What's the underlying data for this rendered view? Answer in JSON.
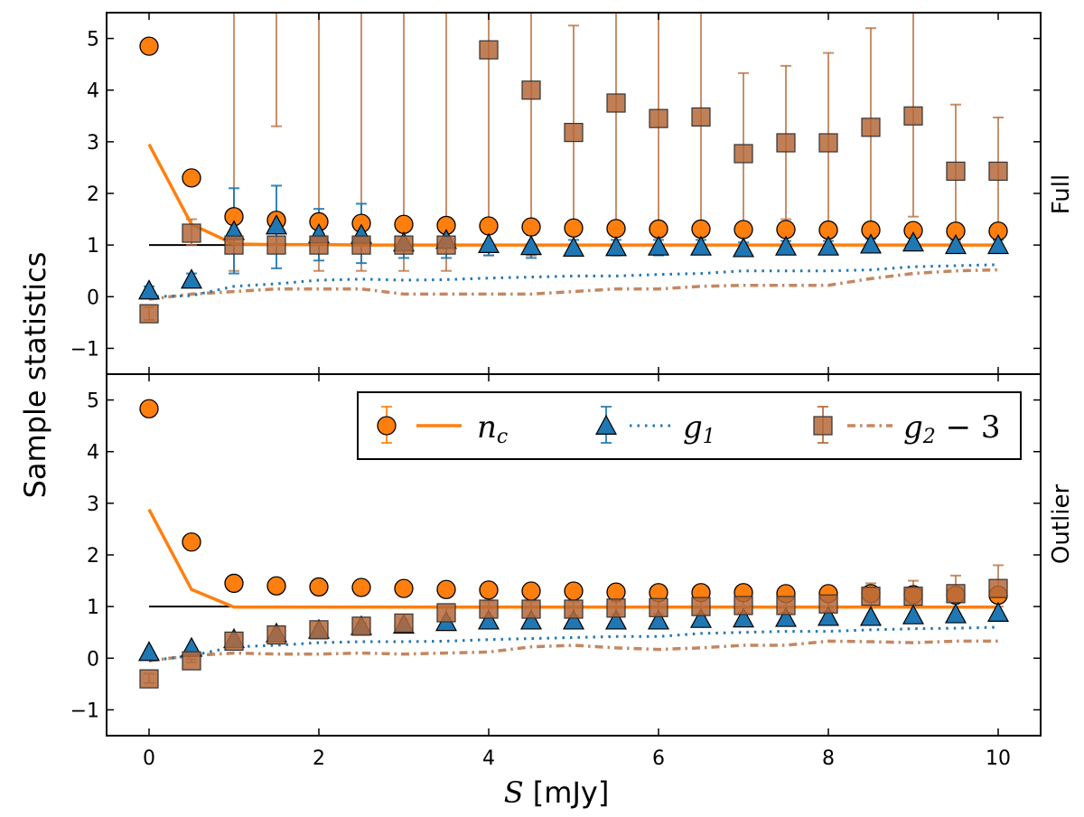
{
  "chart_data": {
    "type": "scatter",
    "ylabel": "Sample statistics",
    "xlabel_symbol": "S",
    "xlabel_unit": " [mJy]",
    "xlim": [
      -0.5,
      10.5
    ],
    "ylim": [
      -1.5,
      5.5
    ],
    "xticks": [
      0,
      2,
      4,
      6,
      8,
      10
    ],
    "yticks": [
      -1,
      0,
      1,
      2,
      3,
      4,
      5
    ],
    "reference_line": {
      "x_from": 0,
      "x_to": 10,
      "y": 1
    },
    "colors": {
      "nc": "#ff7f0e",
      "g1": "#1f77b4",
      "g2": "#b5693a",
      "ref": "#000000"
    },
    "legend": {
      "placement": "upper-right of Outlier panel",
      "entries": [
        {
          "key": "nc",
          "label": "n",
          "sub": "c",
          "suffix": ""
        },
        {
          "key": "g1",
          "label": "g",
          "sub": "1",
          "suffix": ""
        },
        {
          "key": "g2",
          "label": "g",
          "sub": "2",
          "suffix": " − 3"
        }
      ]
    },
    "x": [
      0,
      0.5,
      1,
      1.5,
      2,
      2.5,
      3,
      3.5,
      4,
      4.5,
      5,
      5.5,
      6,
      6.5,
      7,
      7.5,
      8,
      8.5,
      9,
      9.5,
      10
    ],
    "panels": [
      {
        "label": "Full",
        "nc_points": [
          4.85,
          2.3,
          1.55,
          1.48,
          1.45,
          1.42,
          1.4,
          1.38,
          1.37,
          1.35,
          1.33,
          1.32,
          1.31,
          1.31,
          1.3,
          1.3,
          1.29,
          1.29,
          1.28,
          1.27,
          1.27
        ],
        "nc_line": [
          2.95,
          1.4,
          1.02,
          1.01,
          1.01,
          1.0,
          1.0,
          1.0,
          1.0,
          1.0,
          1.0,
          1.0,
          1.0,
          1.0,
          1.0,
          1.0,
          1.0,
          1.0,
          1.0,
          1.0,
          1.0
        ],
        "g1_points": [
          0.12,
          0.33,
          1.27,
          1.38,
          1.21,
          1.2,
          1.05,
          1.1,
          1.02,
          0.98,
          0.95,
          0.96,
          0.97,
          0.97,
          0.94,
          0.97,
          0.97,
          1.01,
          1.05,
          1.0,
          1.0
        ],
        "g1_err": [
          [
            0.1,
            0.2
          ],
          [
            0.45,
            0.2
          ],
          [
            0.45,
            2.1
          ],
          [
            0.55,
            2.15
          ],
          [
            0.7,
            1.7
          ],
          [
            0.65,
            1.8
          ],
          [
            0.75,
            1.35
          ],
          [
            0.75,
            1.45
          ],
          [
            0.8,
            1.25
          ],
          [
            0.75,
            1.2
          ],
          [
            0.8,
            1.1
          ],
          [
            0.8,
            1.1
          ],
          [
            0.8,
            1.1
          ],
          [
            0.82,
            1.1
          ],
          [
            0.82,
            1.05
          ],
          [
            0.85,
            1.08
          ],
          [
            0.85,
            1.08
          ],
          [
            0.88,
            1.12
          ],
          [
            0.9,
            1.18
          ],
          [
            0.88,
            1.1
          ],
          [
            0.88,
            1.1
          ]
        ],
        "g1_line": [
          0.0,
          0.02,
          0.2,
          0.25,
          0.32,
          0.34,
          0.32,
          0.33,
          0.36,
          0.38,
          0.4,
          0.4,
          0.43,
          0.45,
          0.5,
          0.5,
          0.5,
          0.52,
          0.58,
          0.6,
          0.62
        ],
        "g2_points": [
          -0.33,
          1.23,
          1.0,
          1.0,
          1.0,
          1.0,
          1.0,
          1.0,
          4.78,
          4.0,
          3.18,
          3.75,
          3.45,
          3.48,
          2.77,
          2.98,
          2.98,
          3.28,
          3.5,
          2.43,
          2.43
        ],
        "g2_err": [
          [
            -0.45,
            -0.2
          ],
          [
            1.0,
            1.5
          ],
          [
            0.5,
            5.5
          ],
          [
            3.3,
            5.5
          ],
          [
            0.5,
            5.5
          ],
          [
            0.5,
            5.5
          ],
          [
            0.5,
            5.5
          ],
          [
            0.5,
            5.5
          ],
          [
            0.8,
            5.5
          ],
          [
            0.8,
            5.5
          ],
          [
            0.9,
            5.25
          ],
          [
            0.8,
            5.5
          ],
          [
            0.9,
            5.5
          ],
          [
            0.9,
            5.5
          ],
          [
            1.2,
            4.33
          ],
          [
            1.5,
            4.47
          ],
          [
            1.2,
            4.72
          ],
          [
            1.3,
            5.2
          ],
          [
            1.55,
            5.5
          ],
          [
            1.05,
            3.72
          ],
          [
            1.1,
            3.47
          ]
        ],
        "g2_line": [
          -0.05,
          0.05,
          0.1,
          0.15,
          0.15,
          0.15,
          0.05,
          0.05,
          0.05,
          0.05,
          0.1,
          0.15,
          0.15,
          0.2,
          0.22,
          0.22,
          0.22,
          0.35,
          0.45,
          0.5,
          0.52
        ]
      },
      {
        "label": "Outlier",
        "nc_points": [
          4.83,
          2.25,
          1.45,
          1.4,
          1.38,
          1.37,
          1.35,
          1.33,
          1.32,
          1.3,
          1.3,
          1.28,
          1.27,
          1.27,
          1.27,
          1.25,
          1.25,
          1.25,
          1.23,
          1.22,
          1.22
        ],
        "nc_line": [
          2.88,
          1.33,
          0.99,
          0.99,
          0.99,
          0.99,
          0.99,
          0.99,
          0.99,
          0.99,
          0.99,
          0.99,
          0.99,
          0.99,
          0.99,
          0.99,
          0.99,
          0.99,
          0.99,
          0.99,
          0.99
        ],
        "g1_points": [
          0.12,
          0.2,
          0.37,
          0.48,
          0.55,
          0.62,
          0.65,
          0.7,
          0.73,
          0.73,
          0.73,
          0.73,
          0.73,
          0.76,
          0.77,
          0.78,
          0.8,
          0.8,
          0.83,
          0.85,
          0.88
        ],
        "g1_err": null,
        "g1_line": [
          -0.05,
          0.05,
          0.22,
          0.25,
          0.3,
          0.32,
          0.32,
          0.33,
          0.36,
          0.38,
          0.4,
          0.42,
          0.42,
          0.48,
          0.5,
          0.52,
          0.52,
          0.55,
          0.57,
          0.58,
          0.6
        ],
        "g2_points": [
          -0.4,
          -0.05,
          0.33,
          0.45,
          0.55,
          0.62,
          0.68,
          0.88,
          0.95,
          0.95,
          0.95,
          0.97,
          0.98,
          1.0,
          1.02,
          1.02,
          1.05,
          1.2,
          1.2,
          1.25,
          1.35
        ],
        "g2_err": [
          [
            -0.48,
            -0.3
          ],
          [
            -0.08,
            -0.02
          ],
          [
            0.28,
            0.4
          ],
          [
            0.4,
            0.5
          ],
          [
            0.48,
            0.6
          ],
          [
            0.55,
            0.68
          ],
          [
            0.6,
            0.75
          ],
          [
            0.78,
            0.98
          ],
          [
            0.8,
            1.1
          ],
          [
            0.82,
            1.1
          ],
          [
            0.82,
            1.1
          ],
          [
            0.85,
            1.1
          ],
          [
            0.85,
            1.12
          ],
          [
            0.85,
            1.15
          ],
          [
            0.88,
            1.18
          ],
          [
            0.88,
            1.18
          ],
          [
            0.9,
            1.25
          ],
          [
            1.0,
            1.45
          ],
          [
            1.0,
            1.5
          ],
          [
            1.0,
            1.6
          ],
          [
            1.0,
            1.8
          ]
        ],
        "g2_line": [
          -0.05,
          0.05,
          0.1,
          0.08,
          0.08,
          0.1,
          0.08,
          0.1,
          0.12,
          0.22,
          0.25,
          0.2,
          0.17,
          0.2,
          0.25,
          0.25,
          0.33,
          0.32,
          0.3,
          0.33,
          0.33
        ]
      }
    ]
  }
}
